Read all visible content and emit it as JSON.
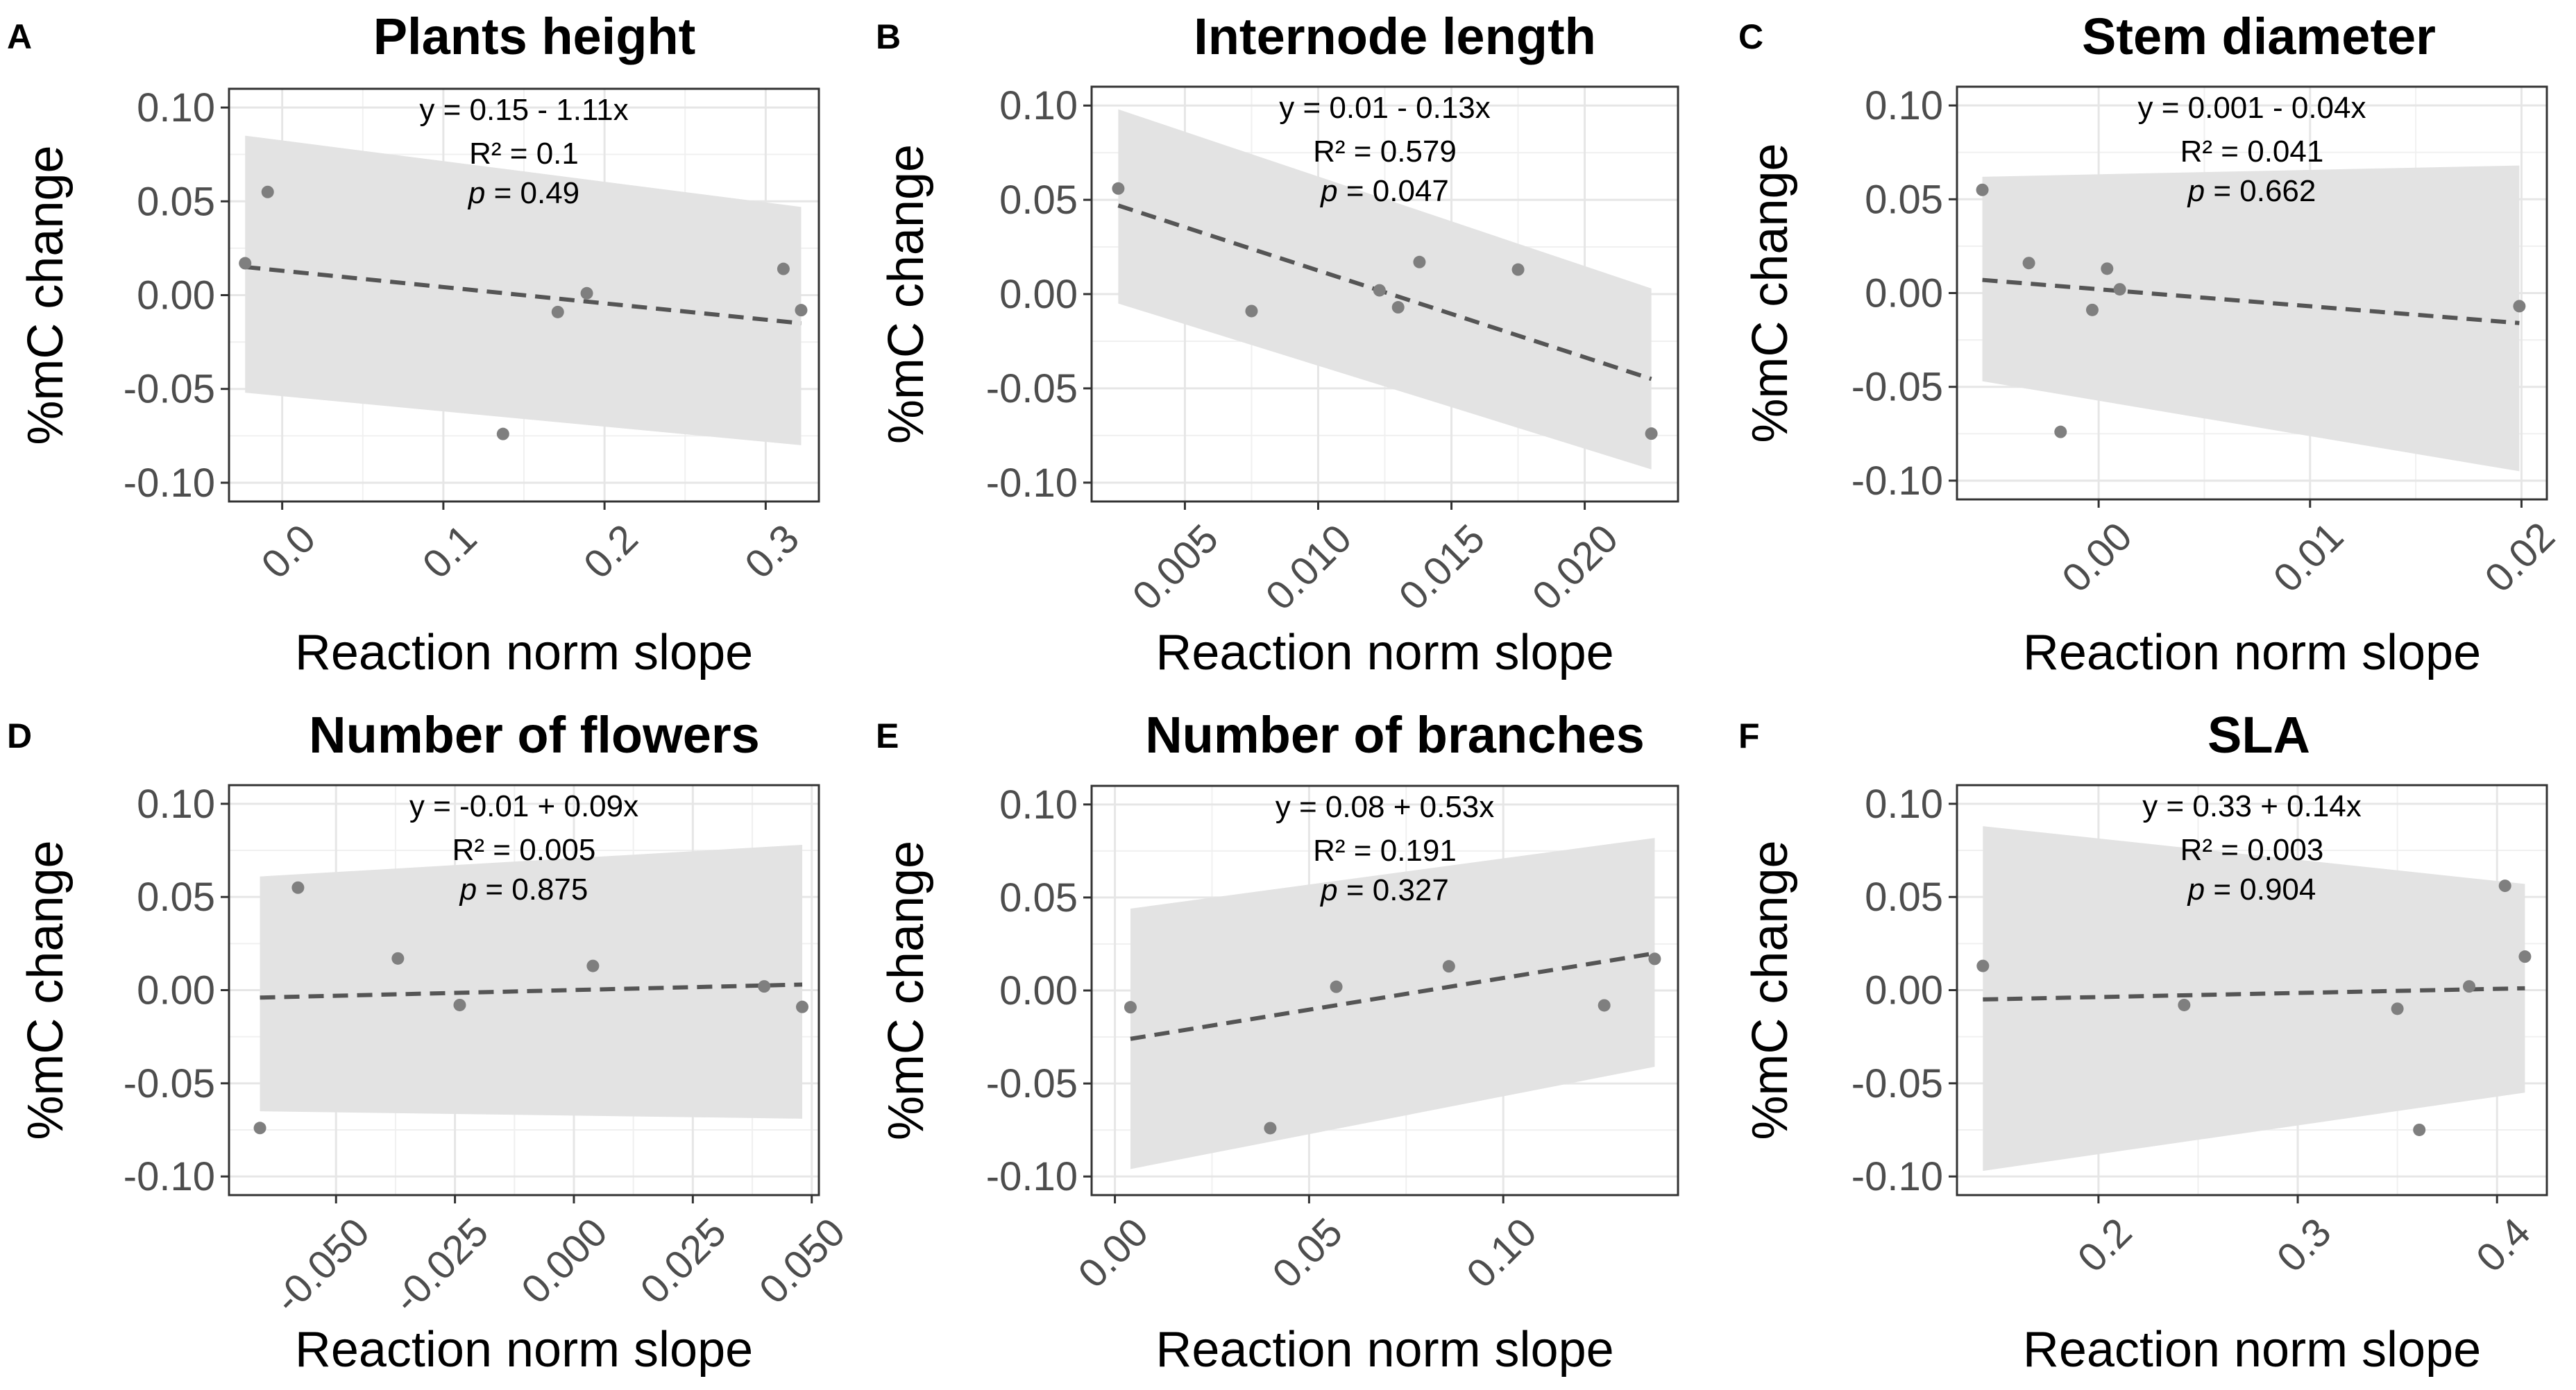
{
  "chart_data": [
    {
      "type": "scatter",
      "label": "A",
      "title": "Plants height",
      "xlabel": "Reaction norm slope",
      "ylabel": "%mC change",
      "xlim": [
        -0.033,
        0.333
      ],
      "ylim": [
        -0.11,
        0.11
      ],
      "xticks": [
        0.0,
        0.1,
        0.2,
        0.3
      ],
      "xtick_labels": [
        "0.0",
        "0.1",
        "0.2",
        "0.3"
      ],
      "yticks": [
        0.1,
        0.05,
        0.0,
        -0.05,
        -0.1
      ],
      "ytick_labels": [
        "0.10",
        "0.05",
        "0.00",
        "-0.05",
        "-0.10"
      ],
      "points": [
        [
          -0.023,
          0.017
        ],
        [
          -0.009,
          0.055
        ],
        [
          0.137,
          -0.074
        ],
        [
          0.171,
          -0.009
        ],
        [
          0.189,
          0.001
        ],
        [
          0.311,
          0.014
        ],
        [
          0.322,
          -0.008
        ]
      ],
      "fit": {
        "x": [
          -0.023,
          0.322
        ],
        "y": [
          0.015,
          -0.015
        ]
      },
      "ribbon": {
        "upper": [
          0.085,
          0.047
        ],
        "lower": [
          -0.052,
          -0.08
        ]
      },
      "ann": {
        "eq": "y = 0.15 - 1.11x",
        "r2": "R² = 0.1",
        "p_label": "p",
        "p_value": "= 0.49"
      }
    },
    {
      "type": "scatter",
      "label": "B",
      "title": "Internode length",
      "xlabel": "Reaction norm slope",
      "ylabel": "%mC change",
      "xlim": [
        0.0015,
        0.0235
      ],
      "ylim": [
        -0.11,
        0.11
      ],
      "xticks": [
        0.005,
        0.01,
        0.015,
        0.02
      ],
      "xtick_labels": [
        "0.005",
        "0.010",
        "0.015",
        "0.020"
      ],
      "yticks": [
        0.1,
        0.05,
        0.0,
        -0.05,
        -0.1
      ],
      "ytick_labels": [
        "0.10",
        "0.05",
        "0.00",
        "-0.05",
        "-0.10"
      ],
      "points": [
        [
          0.0025,
          0.056
        ],
        [
          0.0075,
          -0.009
        ],
        [
          0.0123,
          0.002
        ],
        [
          0.013,
          -0.007
        ],
        [
          0.0138,
          0.017
        ],
        [
          0.0175,
          0.013
        ],
        [
          0.0225,
          -0.074
        ]
      ],
      "fit": {
        "x": [
          0.0025,
          0.0225
        ],
        "y": [
          0.047,
          -0.045
        ]
      },
      "ribbon": {
        "upper": [
          0.098,
          0.003
        ],
        "lower": [
          -0.005,
          -0.093
        ]
      },
      "ann": {
        "eq": "y = 0.01 - 0.13x",
        "r2": "R² = 0.579",
        "p_label": "p",
        "p_value": "= 0.047"
      }
    },
    {
      "type": "scatter",
      "label": "C",
      "title": "Stem diameter",
      "xlabel": "Reaction norm slope",
      "ylabel": "%mC change",
      "xlim": [
        -0.0067,
        0.0212
      ],
      "ylim": [
        -0.11,
        0.11
      ],
      "xticks": [
        0.0,
        0.01,
        0.02
      ],
      "xtick_labels": [
        "0.00",
        "0.01",
        "0.02"
      ],
      "yticks": [
        0.1,
        0.05,
        0.0,
        -0.05,
        -0.1
      ],
      "ytick_labels": [
        "0.10",
        "0.05",
        "0.00",
        "-0.05",
        "-0.10"
      ],
      "points": [
        [
          -0.0055,
          0.055
        ],
        [
          -0.0033,
          0.016
        ],
        [
          -0.0018,
          -0.074
        ],
        [
          -0.0003,
          -0.009
        ],
        [
          0.0004,
          0.013
        ],
        [
          0.001,
          0.002
        ],
        [
          0.0199,
          -0.007
        ]
      ],
      "fit": {
        "x": [
          -0.0055,
          0.0199
        ],
        "y": [
          0.007,
          -0.016
        ]
      },
      "ribbon": {
        "upper": [
          0.062,
          0.068
        ],
        "lower": [
          -0.047,
          -0.095
        ]
      },
      "ann": {
        "eq": "y = 0.001 - 0.04x",
        "r2": "R² = 0.041",
        "p_label": "p",
        "p_value": "= 0.662"
      }
    },
    {
      "type": "scatter",
      "label": "D",
      "title": "Number of flowers",
      "xlabel": "Reaction norm slope",
      "ylabel": "%mC change",
      "xlim": [
        -0.0725,
        0.0515
      ],
      "ylim": [
        -0.11,
        0.11
      ],
      "xticks": [
        -0.05,
        -0.025,
        0.0,
        0.025,
        0.05
      ],
      "xtick_labels": [
        "-0.050",
        "-0.025",
        "0.000",
        "0.025",
        "0.050"
      ],
      "yticks": [
        0.1,
        0.05,
        0.0,
        -0.05,
        -0.1
      ],
      "ytick_labels": [
        "0.10",
        "0.05",
        "0.00",
        "-0.05",
        "-0.10"
      ],
      "points": [
        [
          -0.066,
          -0.074
        ],
        [
          -0.058,
          0.055
        ],
        [
          -0.037,
          0.017
        ],
        [
          -0.024,
          -0.008
        ],
        [
          0.004,
          0.013
        ],
        [
          0.04,
          0.002
        ],
        [
          0.048,
          -0.009
        ]
      ],
      "fit": {
        "x": [
          -0.066,
          0.048
        ],
        "y": [
          -0.004,
          0.003
        ]
      },
      "ribbon": {
        "upper": [
          0.061,
          0.078
        ],
        "lower": [
          -0.065,
          -0.069
        ]
      },
      "ann": {
        "eq": "y = -0.01 + 0.09x",
        "r2": "R² = 0.005",
        "p_label": "p",
        "p_value": "= 0.875"
      }
    },
    {
      "type": "scatter",
      "label": "E",
      "title": "Number of branches",
      "xlabel": "Reaction norm slope",
      "ylabel": "%mC change",
      "xlim": [
        -0.006,
        0.145
      ],
      "ylim": [
        -0.11,
        0.11
      ],
      "xticks": [
        0.0,
        0.05,
        0.1
      ],
      "xtick_labels": [
        "0.00",
        "0.05",
        "0.10"
      ],
      "yticks": [
        0.1,
        0.05,
        0.0,
        -0.05,
        -0.1
      ],
      "ytick_labels": [
        "0.10",
        "0.05",
        "0.00",
        "-0.05",
        "-0.10"
      ],
      "points": [
        [
          0.004,
          -0.009
        ],
        [
          0.04,
          -0.074
        ],
        [
          0.057,
          0.002
        ],
        [
          0.086,
          0.013
        ],
        [
          0.126,
          -0.008
        ],
        [
          0.139,
          0.017
        ]
      ],
      "fit": {
        "x": [
          0.004,
          0.139
        ],
        "y": [
          -0.026,
          0.02
        ]
      },
      "ribbon": {
        "upper": [
          0.044,
          0.082
        ],
        "lower": [
          -0.096,
          -0.041
        ]
      },
      "ann": {
        "eq": "y = 0.08 + 0.53x",
        "r2": "R² = 0.191",
        "p_label": "p",
        "p_value": "= 0.327"
      }
    },
    {
      "type": "scatter",
      "label": "F",
      "title": "SLA",
      "xlabel": "Reaction norm slope",
      "ylabel": "%mC change",
      "xlim": [
        0.129,
        0.425
      ],
      "ylim": [
        -0.11,
        0.11
      ],
      "xticks": [
        0.2,
        0.3,
        0.4
      ],
      "xtick_labels": [
        "0.2",
        "0.3",
        "0.4"
      ],
      "yticks": [
        0.1,
        0.05,
        0.0,
        -0.05,
        -0.1
      ],
      "ytick_labels": [
        "0.10",
        "0.05",
        "0.00",
        "-0.05",
        "-0.10"
      ],
      "points": [
        [
          0.142,
          0.013
        ],
        [
          0.243,
          -0.008
        ],
        [
          0.35,
          -0.01
        ],
        [
          0.361,
          -0.075
        ],
        [
          0.386,
          0.002
        ],
        [
          0.404,
          0.056
        ],
        [
          0.414,
          0.018
        ]
      ],
      "fit": {
        "x": [
          0.142,
          0.414
        ],
        "y": [
          -0.005,
          0.001
        ]
      },
      "ribbon": {
        "upper": [
          0.088,
          0.057
        ],
        "lower": [
          -0.097,
          -0.055
        ]
      },
      "ann": {
        "eq": "y = 0.33 + 0.14x",
        "r2": "R² = 0.003",
        "p_label": "p",
        "p_value": "= 0.904"
      }
    }
  ]
}
